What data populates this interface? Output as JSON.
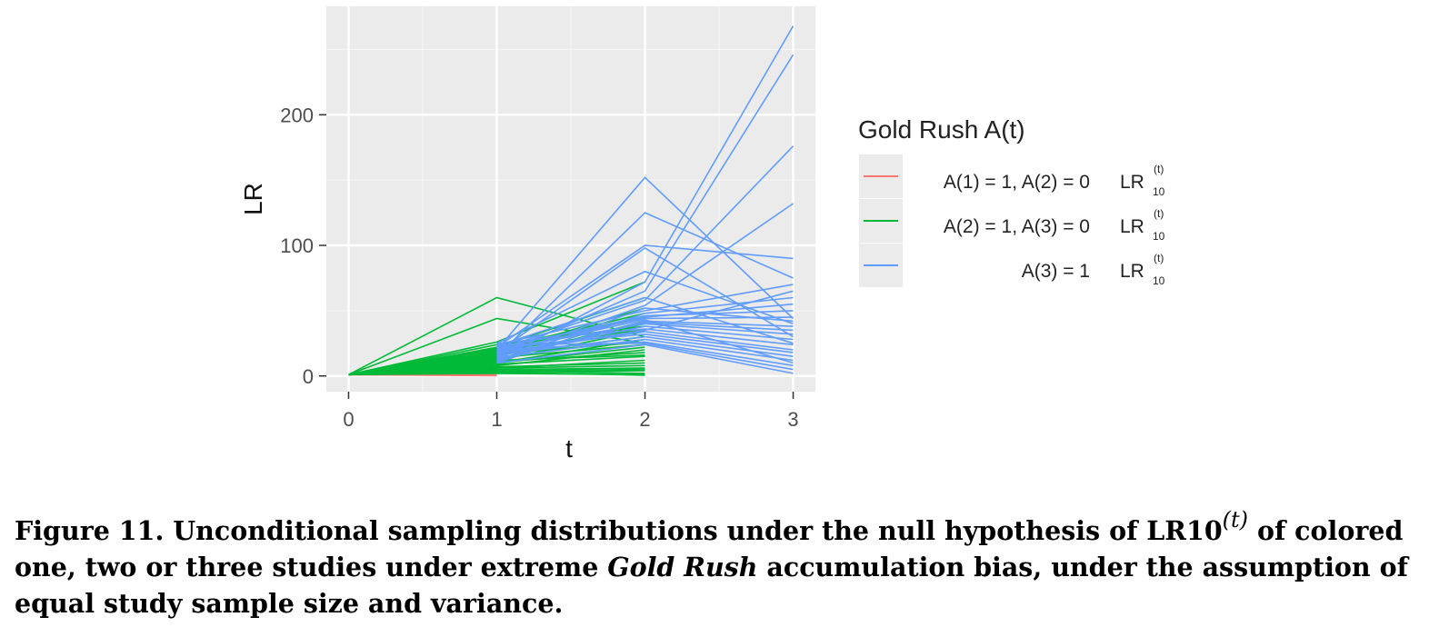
{
  "chart_data": {
    "type": "line",
    "xlabel": "t",
    "ylabel": "LR",
    "x_ticks": [
      "0",
      "1",
      "2",
      "3"
    ],
    "y_ticks": [
      "0",
      "100",
      "200"
    ],
    "xlim": [
      -0.15,
      3.15
    ],
    "ylim": [
      -12,
      283
    ],
    "grid": true,
    "legend": {
      "title": "Gold Rush A(t)",
      "placement": "right",
      "lr_label": "LR",
      "lr_sub": "10",
      "lr_sup": "(t)",
      "entries": [
        {
          "label": "A(1) = 1, A(2) = 0",
          "color": "#F8766D"
        },
        {
          "label": "A(2) = 1, A(3) = 0",
          "color": "#00BA38"
        },
        {
          "label": "A(3) = 1",
          "color": "#619CFF"
        }
      ]
    },
    "series": [
      {
        "name": "A(1) = 1, A(2) = 0",
        "color": "#F8766D",
        "x": [
          0,
          1
        ],
        "lines": [
          [
            1,
            2
          ],
          [
            1,
            3
          ],
          [
            1,
            0.5
          ],
          [
            1,
            4
          ],
          [
            1,
            1
          ],
          [
            1,
            2.5
          ],
          [
            1,
            0.2
          ],
          [
            1,
            3.5
          ]
        ]
      },
      {
        "name": "A(2) = 1, A(3) = 0",
        "color": "#00BA38",
        "x": [
          0,
          1,
          2
        ],
        "lines": [
          [
            1,
            60,
            30
          ],
          [
            1,
            44,
            25
          ],
          [
            1,
            26,
            72
          ],
          [
            1,
            22,
            60
          ],
          [
            1,
            24,
            38
          ],
          [
            1,
            20,
            45
          ],
          [
            1,
            18,
            52
          ],
          [
            1,
            15,
            40
          ],
          [
            1,
            12,
            35
          ],
          [
            1,
            10,
            28
          ],
          [
            1,
            8,
            20
          ],
          [
            1,
            6,
            12
          ],
          [
            1,
            5,
            6
          ],
          [
            1,
            4,
            2
          ],
          [
            1,
            3,
            0.5
          ],
          [
            1,
            16,
            30
          ],
          [
            1,
            14,
            24
          ],
          [
            1,
            11,
            18
          ],
          [
            1,
            9,
            15
          ],
          [
            1,
            7,
            10
          ],
          [
            1,
            3,
            4
          ],
          [
            1,
            2,
            1
          ],
          [
            1,
            13,
            42
          ],
          [
            1,
            19,
            36
          ],
          [
            1,
            21,
            48
          ],
          [
            1,
            17,
            26
          ],
          [
            1,
            6,
            8
          ],
          [
            1,
            10,
            22
          ],
          [
            1,
            12,
            16
          ],
          [
            1,
            4,
            5
          ]
        ]
      },
      {
        "name": "A(3) = 1",
        "color": "#619CFF",
        "x": [
          1,
          2,
          3
        ],
        "lines": [
          [
            20,
            152,
            44
          ],
          [
            15,
            125,
            75
          ],
          [
            22,
            100,
            90
          ],
          [
            18,
            98,
            30
          ],
          [
            25,
            80,
            40
          ],
          [
            12,
            72,
            268
          ],
          [
            16,
            65,
            246
          ],
          [
            20,
            58,
            176
          ],
          [
            14,
            54,
            132
          ],
          [
            24,
            50,
            70
          ],
          [
            10,
            48,
            60
          ],
          [
            18,
            45,
            55
          ],
          [
            22,
            44,
            45
          ],
          [
            12,
            42,
            38
          ],
          [
            20,
            40,
            32
          ],
          [
            15,
            38,
            28
          ],
          [
            25,
            36,
            24
          ],
          [
            18,
            34,
            20
          ],
          [
            22,
            32,
            18
          ],
          [
            16,
            30,
            15
          ],
          [
            14,
            28,
            12
          ],
          [
            20,
            26,
            8
          ],
          [
            24,
            25,
            5
          ],
          [
            10,
            24,
            2
          ],
          [
            17,
            35,
            65
          ],
          [
            21,
            46,
            50
          ],
          [
            13,
            41,
            35
          ],
          [
            19,
            43,
            10
          ],
          [
            23,
            60,
            25
          ],
          [
            11,
            52,
            42
          ]
        ]
      }
    ]
  },
  "caption": {
    "part1": "Figure 11. Unconditional sampling distributions under the null hypothesis of LR10",
    "sup": "(t)",
    "part2": " of colored one, two or three studies under extreme ",
    "italic": "Gold Rush",
    "part3": " accumulation bias, under the assumption of equal study sample size and variance."
  }
}
